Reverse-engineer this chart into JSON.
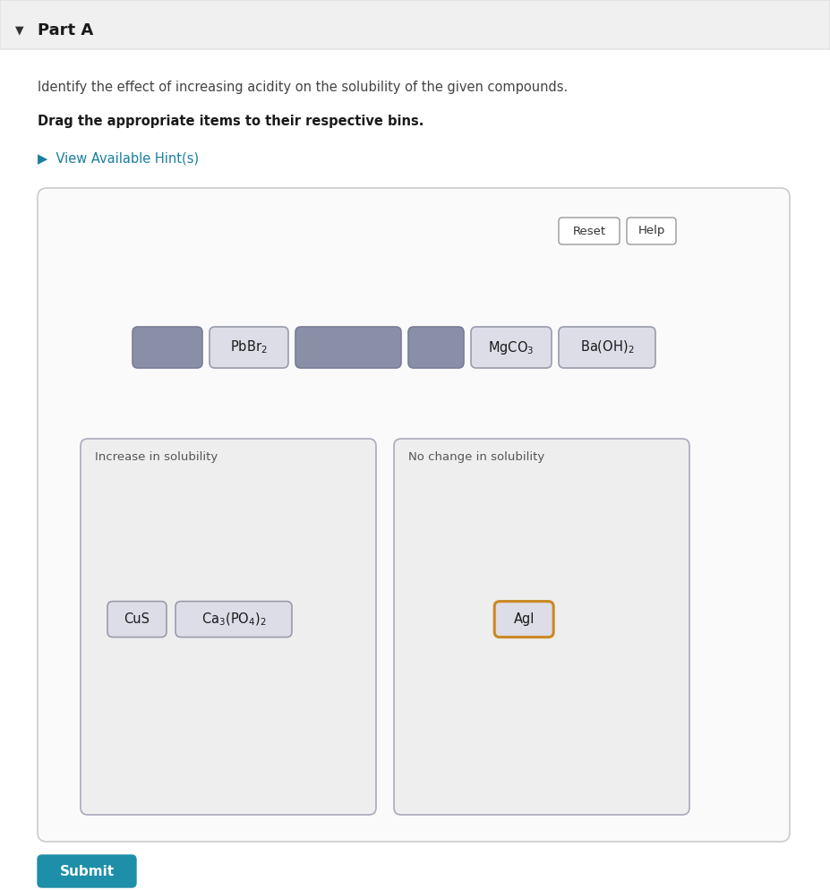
{
  "white": "#ffffff",
  "header_bg": "#f0f0f0",
  "header_border": "#e0e0e0",
  "title": "Part A",
  "instruction1": "Identify the effect of increasing acidity on the solubility of the given compounds.",
  "instruction2": "Drag the appropriate items to their respective bins.",
  "hint_text": "▶  View Available Hint(s)",
  "hint_color": "#1a7fa0",
  "reset_label": "Reset",
  "help_label": "Help",
  "bin1_label": "Increase in solubility",
  "bin2_label": "No change in solubility",
  "submit_label": "Submit",
  "submit_bg": "#1e8fa8",
  "submit_text_color": "#ffffff",
  "arrow_color": "#333333",
  "gray_fill": "#8a8fa8",
  "item_bg": "#dcdde6",
  "item_border": "#9a9caa",
  "box_bg": "#eeeeee",
  "box_border": "#aaaabc",
  "content_box_bg": "#fafafa",
  "content_box_border": "#cccccc",
  "orange_border": "#cc8822"
}
